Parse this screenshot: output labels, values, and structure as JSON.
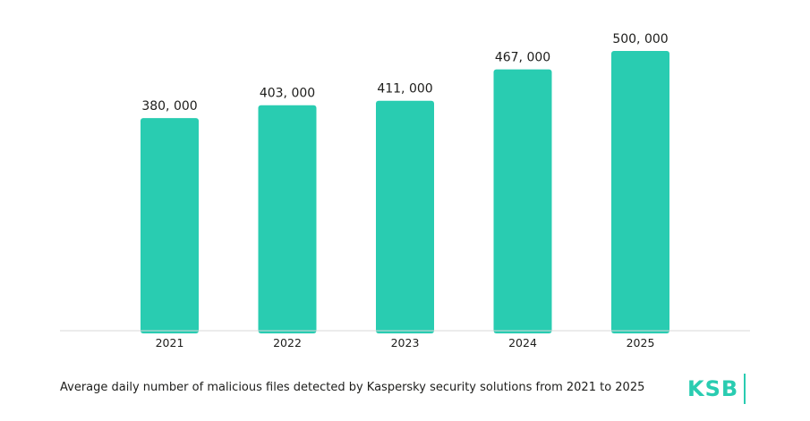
{
  "chart_data": {
    "type": "bar",
    "categories": [
      "2021",
      "2022",
      "2023",
      "2024",
      "2025"
    ],
    "values": [
      380000,
      403000,
      411000,
      467000,
      500000
    ],
    "value_labels": [
      "380, 000",
      "403, 000",
      "411, 000",
      "467, 000",
      "500, 000"
    ],
    "title": "",
    "xlabel": "",
    "ylabel": "",
    "ylim": [
      0,
      500000
    ],
    "grid": false,
    "legend": "none",
    "bar_color": "#29ccb1",
    "axis_color": "#d9d9d9"
  },
  "caption": "Average daily number of malicious files detected by Kaspersky security solutions from 2021 to 2025",
  "logo": {
    "text": "KSB",
    "color": "#29ccb1"
  }
}
